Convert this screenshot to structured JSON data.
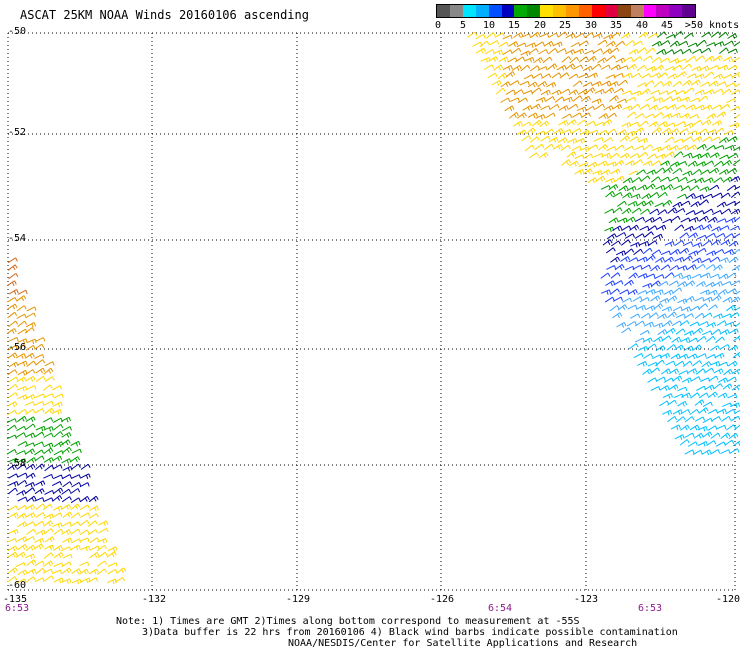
{
  "title": "ASCAT 25KM NOAA Winds 20160106 ascending",
  "legend": {
    "colors": [
      "#555555",
      "#888888",
      "#00e5ff",
      "#00b0ff",
      "#0050ff",
      "#0000c0",
      "#00aa00",
      "#008800",
      "#ffe000",
      "#ffc000",
      "#ff9800",
      "#ff6000",
      "#ff0000",
      "#e00040",
      "#8b4513",
      "#c08060",
      "#ff00ff",
      "#c000c0",
      "#9000c0",
      "#600090"
    ],
    "labels": [
      "0",
      "5",
      "10",
      "15",
      "20",
      "25",
      "30",
      "35",
      "40",
      "45",
      ">50 knots"
    ]
  },
  "map": {
    "lat_labels": [
      "-50",
      "-52",
      "-54",
      "-56",
      "-58",
      "-60"
    ],
    "lon_labels": [
      "-135",
      "-132",
      "-129",
      "-126",
      "-123",
      "-120"
    ],
    "time_labels": [
      "6:53",
      "6:54",
      "6:53"
    ]
  },
  "notes": {
    "line1": "Note: 1) Times are GMT 2)Times along bottom correspond to measurement at -55S",
    "line2": "3)Data buffer is 22 hrs from 20160106 4) Black wind barbs indicate possible contamination",
    "line3": "NOAA/NESDIS/Center for Satellite Applications and Research"
  },
  "wind_colors": {
    "yellow": "#ffd700",
    "orange": "#e59400",
    "dark_orange": "#d2691e",
    "green": "#00a000",
    "dark_green": "#008000",
    "blue": "#1e40ff",
    "navy": "#0000a0",
    "light_blue": "#3fa9ff",
    "cyan": "#00c0ff"
  }
}
